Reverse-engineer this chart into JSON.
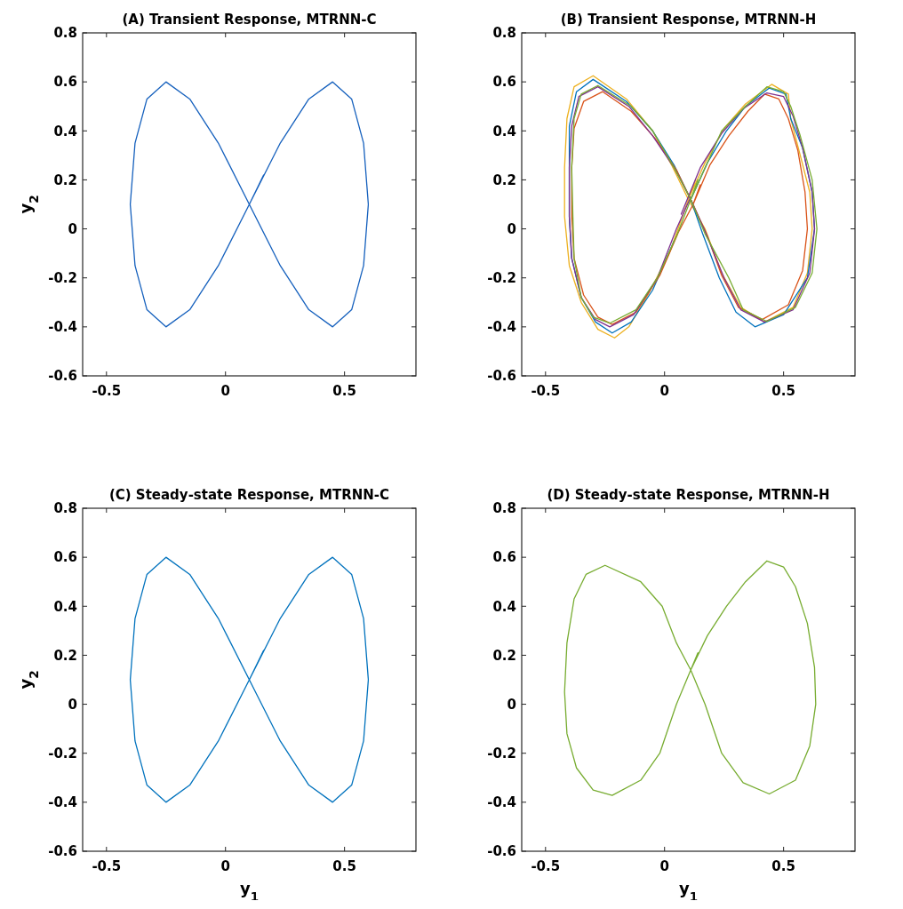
{
  "chart_data": [
    {
      "type": "line",
      "title": "(A) Transient Response, MTRNN-C",
      "ylabel": "y$_{2}$",
      "xlim": [
        -0.6,
        0.8
      ],
      "ylim": [
        -0.6,
        0.8
      ],
      "xticks": [
        -0.5,
        0,
        0.5
      ],
      "yticks": [
        -0.6,
        -0.4,
        -0.2,
        0,
        0.2,
        0.4,
        0.6,
        0.8
      ],
      "series": [
        {
          "color": "#1560bd",
          "x": [
            0.1,
            0.23,
            0.35,
            0.45,
            0.53,
            0.58,
            0.6,
            0.58,
            0.53,
            0.45,
            0.35,
            0.23,
            0.1,
            -0.03,
            -0.15,
            -0.25,
            -0.33,
            -0.38,
            -0.4,
            -0.38,
            -0.33,
            -0.25,
            -0.15,
            -0.03,
            0.1,
            0.16
          ],
          "values": [
            0.1,
            0.35,
            0.53,
            0.6,
            0.53,
            0.35,
            0.1,
            -0.15,
            -0.33,
            -0.4,
            -0.33,
            -0.15,
            0.1,
            0.35,
            0.53,
            0.6,
            0.53,
            0.35,
            0.1,
            -0.15,
            -0.33,
            -0.4,
            -0.33,
            -0.15,
            0.1,
            0.22
          ]
        }
      ]
    },
    {
      "type": "line",
      "title": "(B) Transient Response, MTRNN-H",
      "xlim": [
        -0.6,
        0.8
      ],
      "ylim": [
        -0.6,
        0.8
      ],
      "xticks": [
        -0.5,
        0,
        0.5
      ],
      "yticks": [
        -0.6,
        -0.4,
        -0.2,
        0,
        0.2,
        0.4,
        0.6,
        0.8
      ],
      "series": [
        {
          "color": "#edb120",
          "x": [
            0.1,
            0.17,
            0.25,
            0.34,
            0.45,
            0.52,
            0.53,
            0.57,
            0.61,
            0.62,
            0.6,
            0.54,
            0.42,
            0.32,
            0.24,
            0.17,
            0.1,
            0.03,
            -0.05,
            -0.16,
            -0.3,
            -0.38,
            -0.41,
            -0.42,
            -0.42,
            -0.4,
            -0.35,
            -0.28,
            -0.21,
            -0.15,
            -0.07,
            0.02,
            0.1,
            0.13
          ],
          "values": [
            0.12,
            0.27,
            0.41,
            0.51,
            0.59,
            0.55,
            0.45,
            0.3,
            0.15,
            0.0,
            -0.18,
            -0.32,
            -0.38,
            -0.32,
            -0.18,
            0.0,
            0.12,
            0.26,
            0.4,
            0.53,
            0.625,
            0.58,
            0.45,
            0.25,
            0.05,
            -0.15,
            -0.3,
            -0.41,
            -0.445,
            -0.4,
            -0.27,
            -0.1,
            0.12,
            0.2
          ]
        },
        {
          "color": "#0072bd",
          "x": [
            0.11,
            0.18,
            0.26,
            0.34,
            0.44,
            0.51,
            0.53,
            0.58,
            0.62,
            0.63,
            0.6,
            0.5,
            0.38,
            0.3,
            0.23,
            0.16,
            0.11,
            0.04,
            -0.05,
            -0.16,
            -0.3,
            -0.37,
            -0.4,
            -0.4,
            -0.4,
            -0.39,
            -0.35,
            -0.29,
            -0.22,
            -0.14,
            -0.05,
            0.04
          ],
          "values": [
            0.12,
            0.27,
            0.4,
            0.5,
            0.575,
            0.55,
            0.45,
            0.33,
            0.15,
            0.0,
            -0.2,
            -0.35,
            -0.4,
            -0.34,
            -0.2,
            -0.02,
            0.12,
            0.26,
            0.4,
            0.52,
            0.61,
            0.56,
            0.42,
            0.25,
            0.05,
            -0.12,
            -0.28,
            -0.38,
            -0.425,
            -0.38,
            -0.25,
            -0.05
          ]
        },
        {
          "color": "#d95319",
          "x": [
            0.12,
            0.19,
            0.27,
            0.35,
            0.42,
            0.48,
            0.52,
            0.56,
            0.59,
            0.6,
            0.58,
            0.52,
            0.41,
            0.31,
            0.24,
            0.18,
            0.12,
            0.05,
            -0.04,
            -0.14,
            -0.26,
            -0.34,
            -0.38,
            -0.39,
            -0.39,
            -0.38,
            -0.34,
            -0.28,
            -0.22,
            -0.12,
            -0.02,
            0.06,
            0.12,
            0.15
          ],
          "values": [
            0.1,
            0.26,
            0.38,
            0.48,
            0.55,
            0.53,
            0.45,
            0.32,
            0.15,
            0.0,
            -0.17,
            -0.31,
            -0.37,
            -0.32,
            -0.19,
            -0.03,
            0.1,
            0.24,
            0.37,
            0.48,
            0.56,
            0.52,
            0.41,
            0.25,
            0.05,
            -0.12,
            -0.27,
            -0.36,
            -0.39,
            -0.34,
            -0.19,
            -0.01,
            0.1,
            0.18
          ]
        },
        {
          "color": "#7e2f8e",
          "x": [
            0.07,
            0.15,
            0.24,
            0.33,
            0.43,
            0.5,
            0.54,
            0.58,
            0.62,
            0.63,
            0.61,
            0.54,
            0.42,
            0.32,
            0.25,
            0.17,
            0.11,
            0.04,
            -0.05,
            -0.15,
            -0.28,
            -0.36,
            -0.39,
            -0.4,
            -0.4,
            -0.39,
            -0.35,
            -0.29,
            -0.23,
            -0.13,
            -0.03,
            0.05,
            0.11
          ],
          "values": [
            0.06,
            0.25,
            0.39,
            0.49,
            0.555,
            0.54,
            0.46,
            0.33,
            0.15,
            0.0,
            -0.18,
            -0.33,
            -0.38,
            -0.33,
            -0.2,
            -0.01,
            0.12,
            0.25,
            0.38,
            0.5,
            0.58,
            0.54,
            0.42,
            0.25,
            0.05,
            -0.12,
            -0.28,
            -0.37,
            -0.4,
            -0.35,
            -0.2,
            0.0,
            0.13
          ]
        },
        {
          "color": "#77ac30",
          "x": [
            0.11,
            0.18,
            0.24,
            0.34,
            0.43,
            0.5,
            0.53,
            0.57,
            0.62,
            0.64,
            0.62,
            0.55,
            0.43,
            0.33,
            0.27,
            0.17,
            0.11,
            0.04,
            -0.05,
            -0.14,
            -0.28,
            -0.35,
            -0.38,
            -0.39,
            -0.385,
            -0.38,
            -0.35,
            -0.3,
            -0.23,
            -0.12,
            -0.03,
            0.05,
            0.11,
            0.14
          ],
          "values": [
            0.12,
            0.27,
            0.4,
            0.5,
            0.58,
            0.56,
            0.5,
            0.38,
            0.2,
            0.0,
            -0.18,
            -0.32,
            -0.378,
            -0.33,
            -0.2,
            -0.02,
            0.12,
            0.25,
            0.4,
            0.5,
            0.585,
            0.55,
            0.45,
            0.25,
            0.05,
            -0.12,
            -0.28,
            -0.36,
            -0.385,
            -0.33,
            -0.2,
            -0.03,
            0.12,
            0.2
          ]
        }
      ]
    },
    {
      "type": "line",
      "title": "(C) Steady-state Response, MTRNN-C",
      "xlabel": "y$_{1}$",
      "ylabel": "y$_{2}$",
      "xlim": [
        -0.6,
        0.8
      ],
      "ylim": [
        -0.6,
        0.8
      ],
      "xticks": [
        -0.5,
        0,
        0.5
      ],
      "yticks": [
        -0.6,
        -0.4,
        -0.2,
        0,
        0.2,
        0.4,
        0.6,
        0.8
      ],
      "series": [
        {
          "color": "#0072bd",
          "x": [
            0.1,
            0.23,
            0.35,
            0.45,
            0.53,
            0.58,
            0.6,
            0.58,
            0.53,
            0.45,
            0.35,
            0.23,
            0.1,
            -0.03,
            -0.15,
            -0.25,
            -0.33,
            -0.38,
            -0.4,
            -0.38,
            -0.33,
            -0.25,
            -0.15,
            -0.03,
            0.1,
            0.16
          ],
          "values": [
            0.1,
            0.35,
            0.53,
            0.6,
            0.53,
            0.35,
            0.1,
            -0.15,
            -0.33,
            -0.4,
            -0.33,
            -0.15,
            0.1,
            0.35,
            0.53,
            0.6,
            0.53,
            0.35,
            0.1,
            -0.15,
            -0.33,
            -0.4,
            -0.33,
            -0.15,
            0.1,
            0.22
          ]
        }
      ]
    },
    {
      "type": "line",
      "title": "(D) Steady-state Response, MTRNN-H",
      "xlabel": "y$_{1}$",
      "xlim": [
        -0.6,
        0.8
      ],
      "ylim": [
        -0.6,
        0.8
      ],
      "xticks": [
        -0.5,
        0,
        0.5
      ],
      "yticks": [
        -0.6,
        -0.4,
        -0.2,
        0,
        0.2,
        0.4,
        0.6,
        0.8
      ],
      "series": [
        {
          "color": "#77ac30",
          "x": [
            0.11,
            0.18,
            0.26,
            0.34,
            0.43,
            0.5,
            0.55,
            0.6,
            0.63,
            0.635,
            0.61,
            0.55,
            0.44,
            0.33,
            0.24,
            0.17,
            0.11,
            0.05,
            -0.01,
            -0.1,
            -0.25,
            -0.33,
            -0.38,
            -0.41,
            -0.42,
            -0.41,
            -0.37,
            -0.3,
            -0.22,
            -0.1,
            -0.02,
            0.05,
            0.11,
            0.14
          ],
          "values": [
            0.14,
            0.28,
            0.4,
            0.5,
            0.585,
            0.56,
            0.48,
            0.33,
            0.15,
            0.0,
            -0.17,
            -0.31,
            -0.366,
            -0.32,
            -0.2,
            0.0,
            0.14,
            0.25,
            0.4,
            0.5,
            0.567,
            0.53,
            0.43,
            0.25,
            0.05,
            -0.12,
            -0.26,
            -0.35,
            -0.372,
            -0.31,
            -0.2,
            0.0,
            0.14,
            0.21
          ]
        }
      ]
    }
  ]
}
